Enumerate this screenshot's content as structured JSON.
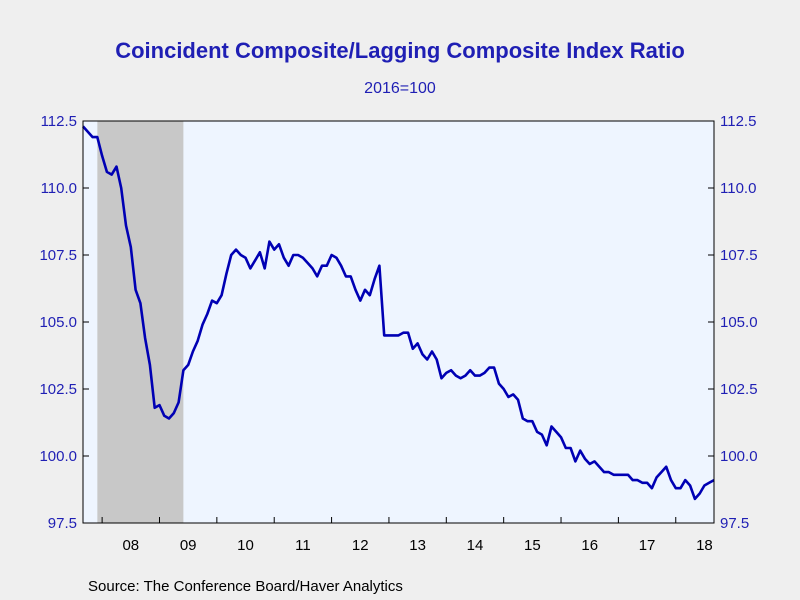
{
  "chart_data": {
    "type": "line",
    "title": "Coincident Composite/Lagging Composite Index Ratio",
    "subtitle": "2016=100",
    "source": "Source:  The Conference Board/Haver Analytics",
    "ylim": [
      97.5,
      112.5
    ],
    "y_ticks": [
      "112.5",
      "110.0",
      "107.5",
      "105.0",
      "102.5",
      "100.0",
      "97.5"
    ],
    "y_tick_values": [
      112.5,
      110.0,
      107.5,
      105.0,
      102.5,
      100.0,
      97.5
    ],
    "x_tick_labels": [
      "08",
      "09",
      "10",
      "11",
      "12",
      "13",
      "14",
      "15",
      "16",
      "17",
      "18"
    ],
    "x_start": "2007-09",
    "x_end": "2018-09",
    "recession": {
      "start": "2007-12",
      "end": "2009-06"
    },
    "colors": {
      "line": "#0000b4",
      "plot_bg": "#eef5ff",
      "recession": "#c8c8c8",
      "text": "#1f1fb4"
    },
    "series": [
      {
        "values": [
          112.3,
          112.1,
          111.9,
          111.9,
          111.2,
          110.6,
          110.5,
          110.8,
          110.0,
          108.6,
          107.8,
          106.2,
          105.7,
          104.4,
          103.4,
          101.8,
          101.9,
          101.5,
          101.4,
          101.6,
          102.0,
          103.2,
          103.4,
          103.9,
          104.3,
          104.9,
          105.3,
          105.8,
          105.7,
          106.0,
          106.8,
          107.5,
          107.7,
          107.5,
          107.4,
          107.0,
          107.3,
          107.6,
          107.0,
          108.0,
          107.7,
          107.9,
          107.4,
          107.1,
          107.5,
          107.5,
          107.4,
          107.2,
          107.0,
          106.7,
          107.1,
          107.1,
          107.5,
          107.4,
          107.1,
          106.7,
          106.7,
          106.2,
          105.8,
          106.2,
          106.0,
          106.6,
          107.1,
          104.5,
          104.5,
          104.5,
          104.5,
          104.6,
          104.6,
          104.0,
          104.2,
          103.8,
          103.6,
          103.9,
          103.6,
          102.9,
          103.1,
          103.2,
          103.0,
          102.9,
          103.0,
          103.2,
          103.0,
          103.0,
          103.1,
          103.3,
          103.3,
          102.7,
          102.5,
          102.2,
          102.3,
          102.1,
          101.4,
          101.3,
          101.3,
          100.9,
          100.8,
          100.4,
          101.1,
          100.9,
          100.7,
          100.3,
          100.3,
          99.8,
          100.2,
          99.9,
          99.7,
          99.8,
          99.6,
          99.4,
          99.4,
          99.3,
          99.3,
          99.3,
          99.3,
          99.1,
          99.1,
          99.0,
          99.0,
          98.8,
          99.2,
          99.4,
          99.6,
          99.1,
          98.8,
          98.8,
          99.1,
          98.9,
          98.4,
          98.6,
          98.9,
          99.0,
          99.1
        ]
      }
    ]
  }
}
